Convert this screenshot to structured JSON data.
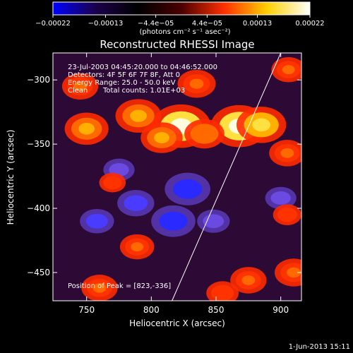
{
  "chart_data": {
    "type": "heatmap",
    "title": "Reconstructed RHESSI Image",
    "xlabel": "Heliocentric X (arcsec)",
    "ylabel": "Heliocentric Y (arcsec)",
    "xlim": [
      724,
      916
    ],
    "ylim": [
      -472,
      -279
    ],
    "x_ticks": [
      750,
      800,
      850,
      900
    ],
    "y_ticks": [
      -300,
      -350,
      -400,
      -450
    ],
    "x_tick_labels": [
      "750",
      "800",
      "850",
      "900"
    ],
    "y_tick_labels": [
      "−300",
      "−350",
      "−400",
      "−450"
    ],
    "colorbar": {
      "range": [
        -0.00022,
        0.00022
      ],
      "ticks": [
        -0.00022,
        -0.00013,
        -4.4e-05,
        4.4e-05,
        0.00013,
        0.00022
      ],
      "tick_labels": [
        "−0.00022",
        "−0.00013",
        "−4.4e−05",
        "4.4e−05",
        "0.00013",
        "0.00022"
      ],
      "unit_label": "(photons cm⁻² s⁻¹ asec⁻²)",
      "colors": [
        "#0000ff",
        "#1a004a",
        "#000000",
        "#4a0000",
        "#ff3000",
        "#ffd000",
        "#ffffff"
      ]
    },
    "info": {
      "time": "23-Jul-2003 04:45:20.000 to 04:46:52.000",
      "detectors": "Detectors: 4F 5F 6F 7F 8F, Att 0",
      "energy": "Energy Range: 25.0 - 50.0 keV",
      "clean": "Clean",
      "counts": "Total counts: 1.01E+03"
    },
    "peak": "Position of Peak = [823,-336]",
    "limb": [
      [
        816,
        -472
      ],
      [
        900,
        -279
      ]
    ],
    "hot_spots": [
      {
        "x": 823,
        "y": -336,
        "value": 0.00022
      },
      {
        "x": 868,
        "y": -336,
        "value": 0.00021
      },
      {
        "x": 885,
        "y": -335,
        "value": 0.00017
      },
      {
        "x": 790,
        "y": -328,
        "value": 0.00015
      },
      {
        "x": 750,
        "y": -338,
        "value": 0.00014
      },
      {
        "x": 808,
        "y": -345,
        "value": 0.00013
      },
      {
        "x": 841,
        "y": -342,
        "value": 0.00012
      },
      {
        "x": 835,
        "y": -303,
        "value": 0.00011
      },
      {
        "x": 905,
        "y": -357,
        "value": 0.0001
      },
      {
        "x": 745,
        "y": -305,
        "value": 0.0001
      },
      {
        "x": 910,
        "y": -450,
        "value": 0.00011
      },
      {
        "x": 875,
        "y": -456,
        "value": 0.0001
      },
      {
        "x": 760,
        "y": -462,
        "value": 0.0001
      },
      {
        "x": 789,
        "y": -430,
        "value": 9e-05
      },
      {
        "x": 906,
        "y": -292,
        "value": 9e-05
      },
      {
        "x": 855,
        "y": -466,
        "value": 8e-05
      },
      {
        "x": 905,
        "y": -405,
        "value": 6e-05
      },
      {
        "x": 770,
        "y": -380,
        "value": 5e-05
      }
    ],
    "cold_spots": [
      {
        "x": 828,
        "y": -385,
        "value": -0.00018
      },
      {
        "x": 817,
        "y": -410,
        "value": -0.00017
      },
      {
        "x": 788,
        "y": -396,
        "value": -0.00012
      },
      {
        "x": 758,
        "y": -410,
        "value": -0.0001
      },
      {
        "x": 848,
        "y": -410,
        "value": -9e-05
      },
      {
        "x": 900,
        "y": -392,
        "value": -8e-05
      },
      {
        "x": 775,
        "y": -370,
        "value": -8e-05
      }
    ]
  },
  "footer": {
    "timestamp": "1-Jun-2013 15:11"
  }
}
